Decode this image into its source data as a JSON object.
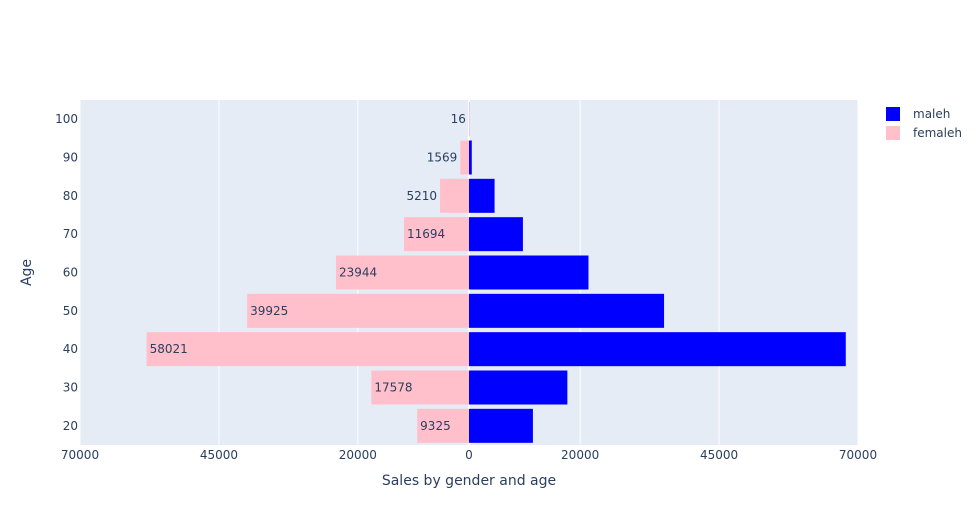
{
  "chart_data": {
    "type": "bar",
    "orientation": "horizontal",
    "barmode": "overlay",
    "title": "",
    "xlabel": "Sales by gender and age",
    "ylabel": "Age",
    "categories": [
      "20",
      "30",
      "40",
      "50",
      "60",
      "70",
      "80",
      "90",
      "100"
    ],
    "y_values": [
      20,
      30,
      40,
      50,
      60,
      70,
      80,
      90,
      100
    ],
    "xlim": [
      -70000,
      70000
    ],
    "ylim": [
      15,
      105
    ],
    "x_tickvals": [
      -70000,
      -45000,
      -20000,
      0,
      20000,
      45000,
      70000
    ],
    "x_ticktext": [
      "70000",
      "45000",
      "20000",
      "0",
      "20000",
      "45000",
      "70000"
    ],
    "y_tickvals": [
      20,
      30,
      40,
      50,
      60,
      70,
      80,
      90,
      100
    ],
    "y_ticktext": [
      "20",
      "30",
      "40",
      "50",
      "60",
      "70",
      "80",
      "90",
      "100"
    ],
    "grid": true,
    "legend_position": "top-right",
    "series": [
      {
        "name": "maleh",
        "color": "#0000ff",
        "values": [
          11500,
          17700,
          67800,
          35100,
          21500,
          9700,
          4600,
          500,
          5
        ]
      },
      {
        "name": "femaleh",
        "color": "#ffc0cb",
        "values": [
          -9325,
          -17578,
          -58021,
          -39925,
          -23944,
          -11694,
          -5210,
          -1569,
          -16
        ],
        "labels": [
          "9325",
          "17578",
          "58021",
          "39925",
          "23944",
          "11694",
          "5210",
          "1569",
          "16"
        ]
      }
    ],
    "colors": {
      "plot_background": "#e5ecf6",
      "gridline": "#ffffff",
      "text": "#2a3f5f"
    }
  }
}
